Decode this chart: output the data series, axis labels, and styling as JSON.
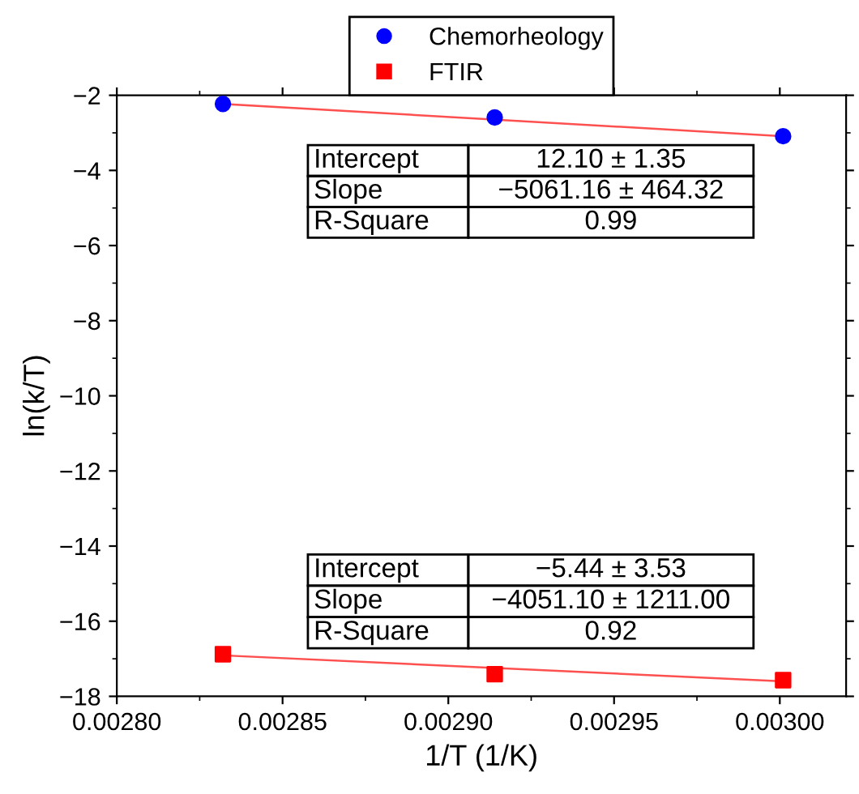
{
  "chart_data": {
    "type": "scatter",
    "xlabel": "1/T (1/K)",
    "ylabel": "ln(k/T)",
    "xlim": [
      0.0028,
      0.00302
    ],
    "xticks": [
      {
        "value": 0.0028,
        "label": "0.00280"
      },
      {
        "value": 0.00285,
        "label": "0.00285"
      },
      {
        "value": 0.0029,
        "label": "0.00290"
      },
      {
        "value": 0.00295,
        "label": "0.00295"
      },
      {
        "value": 0.003,
        "label": "0.00300"
      }
    ],
    "ylim": [
      -18,
      -2
    ],
    "yticks": [
      {
        "value": -18,
        "label": "−18"
      },
      {
        "value": -16,
        "label": "−16"
      },
      {
        "value": -14,
        "label": "−14"
      },
      {
        "value": -12,
        "label": "−12"
      },
      {
        "value": -10,
        "label": "−10"
      },
      {
        "value": -8,
        "label": "−8"
      },
      {
        "value": -6,
        "label": "−6"
      },
      {
        "value": -4,
        "label": "−4"
      },
      {
        "value": -2,
        "label": "−2"
      }
    ],
    "grid": false,
    "legend": "top",
    "series": [
      {
        "name": "Chemorheology",
        "marker": "circle",
        "color": "#0000ff",
        "x": [
          0.002832,
          0.002914,
          0.003001
        ],
        "values": [
          -2.23,
          -2.59,
          -3.09
        ]
      },
      {
        "name": "FTIR",
        "marker": "square",
        "color": "#ff0000",
        "x": [
          0.002832,
          0.002914,
          0.003001
        ],
        "values": [
          -16.88,
          -17.41,
          -17.57
        ]
      },
      {
        "type": "line",
        "color": "#ff5050",
        "x": [
          0.002832,
          0.003001
        ],
        "values": [
          -2.23,
          -3.09
        ]
      },
      {
        "type": "line",
        "color": "#ff5050",
        "x": [
          0.002832,
          0.003001
        ],
        "values": [
          -16.91,
          -17.6
        ]
      }
    ],
    "annotations": [
      "Intercept",
      "12.10 ± 1.35",
      "Slope",
      "−5061.16 ± 464.32",
      "R-Square",
      "0.99",
      "Intercept",
      "−5.44 ± 3.53",
      "Slope",
      "−4051.10 ± 1211.00",
      "R-Square",
      "0.92"
    ]
  }
}
